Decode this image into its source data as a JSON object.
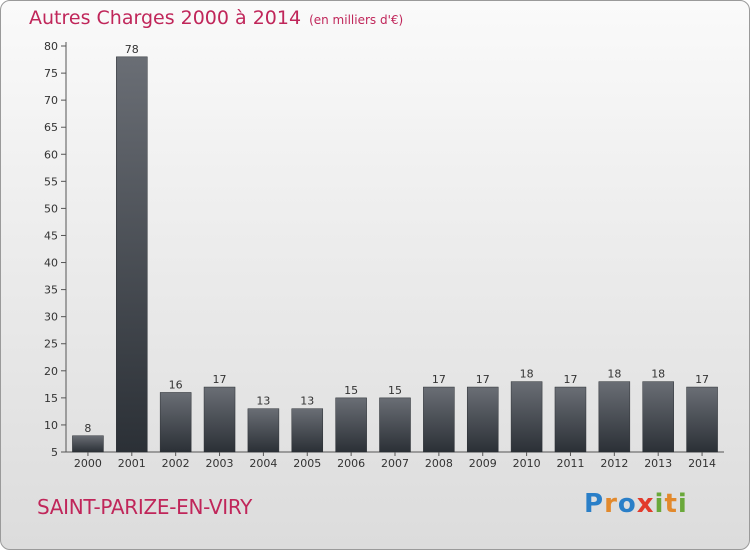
{
  "header": {
    "title": "Autres Charges 2000 à 2014",
    "unit_note": "(en milliers d'€)"
  },
  "footer": {
    "city": "SAINT-PARIZE-EN-VIRY"
  },
  "logo": {
    "text": "Proxiti",
    "letter_colors": [
      "#2a7fc8",
      "#e2892c",
      "#2a7fc8",
      "#e23b2c",
      "#6aa83a",
      "#e2892c",
      "#6aa83a"
    ]
  },
  "colors": {
    "accent": "#c0265a",
    "bar_top": "#6a6e75",
    "bar_bottom": "#2b3036"
  },
  "chart_data": {
    "type": "bar",
    "categories": [
      "2000",
      "2001",
      "2002",
      "2003",
      "2004",
      "2005",
      "2006",
      "2007",
      "2008",
      "2009",
      "2010",
      "2011",
      "2012",
      "2013",
      "2014"
    ],
    "values": [
      8,
      78,
      16,
      17,
      13,
      13,
      15,
      15,
      17,
      17,
      18,
      17,
      18,
      18,
      17
    ],
    "ylim": [
      5,
      80
    ],
    "yticks": [
      5,
      10,
      15,
      20,
      25,
      30,
      35,
      40,
      45,
      50,
      55,
      60,
      65,
      70,
      75,
      80
    ],
    "grid": false,
    "data_labels": true
  }
}
